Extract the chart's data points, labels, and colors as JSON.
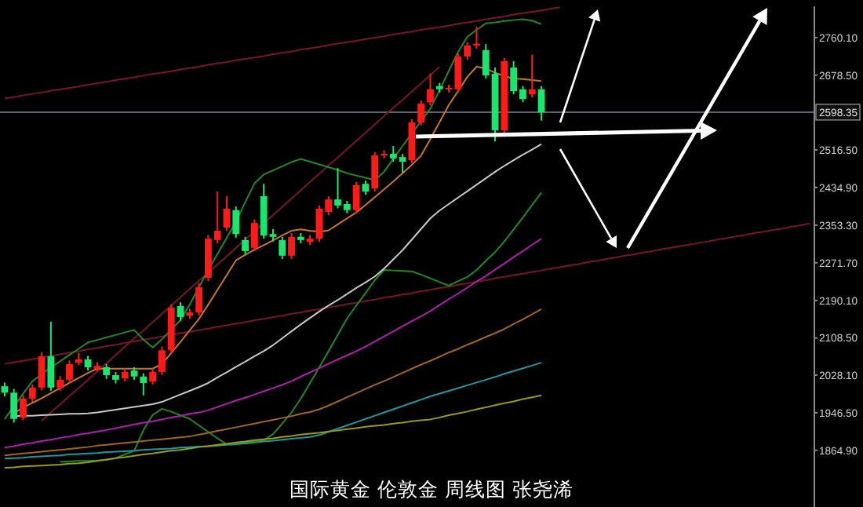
{
  "chart_data": {
    "type": "candlestick",
    "categories": [
      null,
      null,
      null,
      null,
      null,
      null,
      null,
      null,
      null,
      null,
      null,
      null,
      null,
      null,
      null,
      null,
      null,
      null,
      null,
      null,
      null,
      null,
      null,
      null,
      null,
      null,
      null,
      null,
      null,
      null,
      null,
      null,
      null,
      null,
      null,
      null,
      null,
      null,
      null,
      null,
      null,
      null,
      null,
      null,
      null,
      null,
      null,
      null,
      null,
      null,
      null,
      null,
      null,
      null,
      null,
      null,
      null,
      null,
      null,
      null,
      null,
      null,
      null,
      null,
      null,
      null,
      null,
      null,
      null,
      null,
      null,
      null,
      null,
      null,
      null,
      null,
      null,
      null,
      null,
      null,
      null,
      null,
      null,
      null,
      null,
      null,
      null,
      null
    ],
    "ohlc": [
      [
        2004,
        2012,
        1982,
        1990
      ],
      [
        1990,
        1998,
        1925,
        1933
      ],
      [
        1936,
        1985,
        1930,
        1977
      ],
      [
        1977,
        2008,
        1970,
        2001
      ],
      [
        2001,
        2078,
        1995,
        2069
      ],
      [
        2069,
        2144,
        1994,
        2001
      ],
      [
        2001,
        2026,
        1994,
        2018
      ],
      [
        2018,
        2060,
        2012,
        2052
      ],
      [
        2055,
        2076,
        2050,
        2062
      ],
      [
        2062,
        2070,
        2038,
        2045
      ],
      [
        2042,
        2056,
        2036,
        2048
      ],
      [
        2045,
        2052,
        2020,
        2028
      ],
      [
        2028,
        2035,
        2010,
        2018
      ],
      [
        2021,
        2042,
        2014,
        2035
      ],
      [
        2038,
        2045,
        2018,
        2025
      ],
      [
        2025,
        2032,
        1984,
        2011
      ],
      [
        2014,
        2042,
        2008,
        2035
      ],
      [
        2035,
        2090,
        2028,
        2082
      ],
      [
        2082,
        2182,
        2075,
        2174
      ],
      [
        2178,
        2186,
        2146,
        2154
      ],
      [
        2157,
        2172,
        2150,
        2164
      ],
      [
        2164,
        2228,
        2157,
        2219
      ],
      [
        2239,
        2332,
        2232,
        2324
      ],
      [
        2321,
        2426,
        2314,
        2341
      ],
      [
        2348,
        2416,
        2341,
        2389
      ],
      [
        2386,
        2394,
        2326,
        2334
      ],
      [
        2321,
        2328,
        2290,
        2297
      ],
      [
        2304,
        2366,
        2297,
        2358
      ],
      [
        2416,
        2443,
        2324,
        2331
      ],
      [
        2334,
        2345,
        2318,
        2328
      ],
      [
        2321,
        2328,
        2280,
        2287
      ],
      [
        2287,
        2336,
        2280,
        2328
      ],
      [
        2328,
        2336,
        2314,
        2321
      ],
      [
        2317,
        2332,
        2310,
        2324
      ],
      [
        2324,
        2396,
        2317,
        2389
      ],
      [
        2382,
        2416,
        2375,
        2409
      ],
      [
        2409,
        2477,
        2390,
        2396
      ],
      [
        2399,
        2406,
        2379,
        2386
      ],
      [
        2386,
        2447,
        2379,
        2440
      ],
      [
        2443,
        2450,
        2419,
        2426
      ],
      [
        2433,
        2512,
        2426,
        2505
      ],
      [
        2505,
        2516,
        2498,
        2508
      ],
      [
        2508,
        2525,
        2491,
        2498
      ],
      [
        2501,
        2508,
        2467,
        2491
      ],
      [
        2494,
        2583,
        2487,
        2576
      ],
      [
        2576,
        2624,
        2569,
        2617
      ],
      [
        2620,
        2682,
        2613,
        2648
      ],
      [
        2655,
        2662,
        2641,
        2648
      ],
      [
        2648,
        2658,
        2641,
        2651
      ],
      [
        2648,
        2726,
        2641,
        2719
      ],
      [
        2719,
        2750,
        2712,
        2743
      ],
      [
        2743,
        2784,
        2736,
        2747
      ],
      [
        2733,
        2746,
        2671,
        2678
      ],
      [
        2682,
        2695,
        2535,
        2559
      ],
      [
        2559,
        2716,
        2552,
        2709
      ],
      [
        2695,
        2709,
        2637,
        2644
      ],
      [
        2648,
        2655,
        2620,
        2627
      ],
      [
        2637,
        2723,
        2630,
        2648
      ],
      [
        2648,
        2655,
        2580,
        2598
      ],
      null,
      null,
      null,
      null,
      null,
      null,
      null,
      null,
      null,
      null,
      null,
      null,
      null,
      null,
      null,
      null,
      null,
      null,
      null,
      null,
      null,
      null,
      null,
      null,
      null,
      null,
      null,
      null,
      null
    ],
    "colors": [
      "#19e66e",
      "#19e66e",
      "#ff1a1a",
      "#ff1a1a",
      "#ff1a1a",
      "#19e66e",
      "#ff1a1a",
      "#ff1a1a",
      "#ff1a1a",
      "#19e66e",
      "#ff1a1a",
      "#19e66e",
      "#19e66e",
      "#ff1a1a",
      "#19e66e",
      "#19e66e",
      "#ff1a1a",
      "#ff1a1a",
      "#ff1a1a",
      "#19e66e",
      "#ff1a1a",
      "#ff1a1a",
      "#ff1a1a",
      "#ff1a1a",
      "#ff1a1a",
      "#19e66e",
      "#19e66e",
      "#ff1a1a",
      "#19e66e",
      "#19e66e",
      "#19e66e",
      "#ff1a1a",
      "#19e66e",
      "#ff1a1a",
      "#ff1a1a",
      "#ff1a1a",
      "#19e66e",
      "#19e66e",
      "#ff1a1a",
      "#19e66e",
      "#ff1a1a",
      "#ff1a1a",
      "#19e66e",
      "#19e66e",
      "#ff1a1a",
      "#ff1a1a",
      "#ff1a1a",
      "#19e66e",
      "#ff1a1a",
      "#ff1a1a",
      "#ff1a1a",
      "#ff1a1a",
      "#19e66e",
      "#19e66e",
      "#ff1a1a",
      "#19e66e",
      "#19e66e",
      "#ff1a1a",
      "#19e66e",
      null,
      null,
      null,
      null,
      null,
      null,
      null,
      null,
      null,
      null,
      null,
      null,
      null,
      null,
      null,
      null,
      null,
      null,
      null,
      null,
      null,
      null,
      null,
      null,
      null,
      null,
      null,
      null,
      null
    ],
    "series": [
      {
        "type": "line",
        "color": "#7a1428",
        "values": [
          2628,
          2631,
          2635,
          2638,
          2641,
          2645,
          2648,
          2651,
          2654,
          2658,
          2661,
          2664,
          2668,
          2671,
          2674,
          2678,
          2681,
          2684,
          2687,
          2691,
          2694,
          2697,
          2701,
          2704,
          2707,
          2711,
          2714,
          2717,
          2720,
          2724,
          2727,
          2730,
          2734,
          2737,
          2740,
          2744,
          2747,
          2750,
          2753,
          2757,
          2760,
          2763,
          2767,
          2770,
          2773,
          2777,
          2780,
          2783,
          2786,
          2790,
          2793,
          2796,
          2800,
          2803,
          2806,
          2810,
          2813,
          2816,
          2819,
          2823,
          2826,
          null,
          null,
          null,
          null,
          null,
          null,
          null,
          null,
          null,
          null,
          null,
          null,
          null,
          null,
          null,
          null,
          null,
          null,
          null,
          null,
          null,
          null,
          null,
          null,
          null,
          null,
          null
        ]
      },
      {
        "type": "line",
        "color": "#7a1428",
        "values": [
          null,
          null,
          null,
          null,
          1929,
          1947,
          1965,
          1983,
          2000,
          2018,
          2036,
          2054,
          2072,
          2090,
          2108,
          2125,
          2143,
          2161,
          2179,
          2197,
          2215,
          2233,
          2250,
          2268,
          2286,
          2304,
          2322,
          2340,
          2358,
          2375,
          2393,
          2411,
          2429,
          2447,
          2465,
          2483,
          2500,
          2518,
          2536,
          2554,
          2572,
          2590,
          2608,
          2625,
          2643,
          2661,
          2679,
          2697,
          null,
          null,
          null,
          null,
          null,
          null,
          null,
          null,
          null,
          null,
          null,
          null,
          null,
          null,
          null,
          null,
          null,
          null,
          null,
          null,
          null,
          null,
          null,
          null,
          null,
          null,
          null,
          null,
          null,
          null,
          null,
          null,
          null,
          null,
          null,
          null,
          null,
          null,
          null,
          null
        ]
      },
      {
        "type": "line",
        "color": "#7a1428",
        "values": [
          2052,
          2056,
          2059,
          2063,
          2066,
          2070,
          2073,
          2077,
          2080,
          2084,
          2087,
          2091,
          2094,
          2098,
          2101,
          2105,
          2108,
          2112,
          2115,
          2119,
          2122,
          2126,
          2129,
          2133,
          2136,
          2140,
          2143,
          2147,
          2150,
          2154,
          2157,
          2161,
          2164,
          2168,
          2171,
          2175,
          2178,
          2182,
          2185,
          2189,
          2192,
          2196,
          2199,
          2203,
          2206,
          2210,
          2213,
          2217,
          2220,
          2224,
          2227,
          2231,
          2234,
          2238,
          2241,
          2245,
          2248,
          2252,
          2255,
          2259,
          2262,
          2266,
          2269,
          2273,
          2276,
          2280,
          2283,
          2287,
          2290,
          2294,
          2297,
          2301,
          2304,
          2308,
          2311,
          2315,
          2318,
          2322,
          2325,
          2329,
          2332,
          2336,
          2339,
          2343,
          2346,
          2350,
          2353,
          2357
        ]
      },
      {
        "type": "line",
        "color": "#1f8a1f",
        "values": [
          1933,
          1960,
          1988,
          2015,
          2030,
          2045,
          2058,
          2072,
          2085,
          2099,
          2104,
          2110,
          2115,
          2121,
          2126,
          2105,
          2088,
          2106,
          2127,
          2147,
          2181,
          2219,
          2256,
          2291,
          2326,
          2361,
          2403,
          2444,
          2463,
          2472,
          2481,
          2490,
          2497,
          2491,
          2485,
          2479,
          2473,
          2466,
          2461,
          2456,
          2451,
          2469,
          2497,
          2525,
          2552,
          2579,
          2606,
          2646,
          2688,
          2729,
          2762,
          2777,
          2791,
          2793,
          2796,
          2798,
          2800,
          2797,
          2789,
          null,
          null,
          null,
          null,
          null,
          null,
          null,
          null,
          null,
          null,
          null,
          null,
          null,
          null,
          null,
          null,
          null,
          null,
          null,
          null,
          null,
          null,
          null,
          null,
          null,
          null,
          null,
          null,
          null
        ]
      },
      {
        "type": "line",
        "color": "#1f8a1f",
        "values": [
          null,
          null,
          null,
          null,
          null,
          null,
          1840,
          1841,
          1842,
          1842,
          1843,
          1844,
          1848,
          1856,
          1864,
          1909,
          1942,
          1955,
          1949,
          1941,
          1933,
          1919,
          1905,
          1891,
          1878,
          1880,
          1882,
          1884,
          1887,
          1900,
          1923,
          1947,
          1977,
          2011,
          2045,
          2080,
          2115,
          2151,
          2179,
          2206,
          2234,
          2256,
          2255,
          2254,
          2253,
          2246,
          2238,
          2230,
          2222,
          2232,
          2241,
          2256,
          2276,
          2295,
          2318,
          2344,
          2370,
          2397,
          2424,
          null,
          null,
          null,
          null,
          null,
          null,
          null,
          null,
          null,
          null,
          null,
          null,
          null,
          null,
          null,
          null,
          null,
          null,
          null,
          null,
          null,
          null,
          null,
          null,
          null,
          null,
          null,
          null,
          null
        ]
      },
      {
        "type": "line",
        "color": "#c8c8c8",
        "values": [
          null,
          1939,
          1940,
          1940,
          1941,
          1942,
          1943,
          1944,
          1944,
          1945,
          1947,
          1950,
          1953,
          1956,
          1959,
          1962,
          1965,
          1970,
          1978,
          1986,
          1994,
          2002,
          2011,
          2023,
          2034,
          2046,
          2057,
          2069,
          2080,
          2093,
          2108,
          2123,
          2138,
          2152,
          2166,
          2179,
          2191,
          2204,
          2217,
          2229,
          2242,
          2259,
          2279,
          2299,
          2322,
          2345,
          2368,
          2385,
          2399,
          2413,
          2427,
          2441,
          2455,
          2469,
          2482,
          2494,
          2506,
          2517,
          2529,
          null,
          null,
          null,
          null,
          null,
          null,
          null,
          null,
          null,
          null,
          null,
          null,
          null,
          null,
          null,
          null,
          null,
          null,
          null,
          null,
          null,
          null,
          null,
          null,
          null,
          null,
          null,
          null,
          null
        ]
      },
      {
        "type": "line",
        "color": "#b01cb0",
        "values": [
          1871,
          1874,
          1878,
          1881,
          1885,
          1888,
          1892,
          1895,
          1899,
          1902,
          1906,
          1909,
          1913,
          1917,
          1921,
          1925,
          1928,
          1932,
          1936,
          1940,
          1944,
          1947,
          1952,
          1959,
          1966,
          1973,
          1979,
          1986,
          1993,
          2000,
          2007,
          2015,
          2025,
          2034,
          2043,
          2053,
          2062,
          2071,
          2080,
          2090,
          2101,
          2112,
          2123,
          2134,
          2145,
          2156,
          2167,
          2180,
          2193,
          2205,
          2218,
          2231,
          2243,
          2257,
          2270,
          2284,
          2297,
          2311,
          2324,
          null,
          null,
          null,
          null,
          null,
          null,
          null,
          null,
          null,
          null,
          null,
          null,
          null,
          null,
          null,
          null,
          null,
          null,
          null,
          null,
          null,
          null,
          null,
          null,
          null,
          null,
          null,
          null,
          null
        ]
      },
      {
        "type": "line",
        "color": "#a0641e",
        "values": [
          1854,
          1856,
          1858,
          1860,
          1862,
          1864,
          1866,
          1868,
          1870,
          1872,
          1875,
          1877,
          1879,
          1881,
          1883,
          1885,
          1887,
          1889,
          1891,
          1893,
          1895,
          1899,
          1903,
          1907,
          1911,
          1915,
          1919,
          1923,
          1927,
          1931,
          1935,
          1939,
          1944,
          1948,
          1954,
          1962,
          1971,
          1980,
          1989,
          1998,
          2007,
          2015,
          2024,
          2033,
          2042,
          2051,
          2059,
          2068,
          2077,
          2085,
          2094,
          2102,
          2111,
          2119,
          2128,
          2139,
          2149,
          2160,
          2171,
          null,
          null,
          null,
          null,
          null,
          null,
          null,
          null,
          null,
          null,
          null,
          null,
          null,
          null,
          null,
          null,
          null,
          null,
          null,
          null,
          null,
          null,
          null,
          null,
          null,
          null,
          null,
          null,
          null
        ]
      },
      {
        "type": "line",
        "color": "#1a9aa0",
        "values": [
          1847,
          1848,
          1849,
          1851,
          1852,
          1853,
          1854,
          1856,
          1857,
          1858,
          1859,
          1861,
          1862,
          1863,
          1864,
          1866,
          1867,
          1868,
          1869,
          1871,
          1872,
          1873,
          1874,
          1875,
          1877,
          1878,
          1880,
          1882,
          1884,
          1886,
          1888,
          1890,
          1892,
          1894,
          1898,
          1905,
          1912,
          1919,
          1926,
          1933,
          1940,
          1947,
          1954,
          1961,
          1968,
          1975,
          1982,
          1988,
          1994,
          2000,
          2006,
          2012,
          2018,
          2024,
          2031,
          2037,
          2043,
          2049,
          2055,
          null,
          null,
          null,
          null,
          null,
          null,
          null,
          null,
          null,
          null,
          null,
          null,
          null,
          null,
          null,
          null,
          null,
          null,
          null,
          null,
          null,
          null,
          null,
          null,
          null,
          null,
          null,
          null,
          null
        ]
      },
      {
        "type": "line",
        "color": "#9a9a10",
        "values": [
          1827,
          1828,
          1830,
          1831,
          1832,
          1833,
          1834,
          1836,
          1837,
          1839,
          1842,
          1845,
          1848,
          1850,
          1853,
          1856,
          1858,
          1861,
          1864,
          1866,
          1869,
          1872,
          1874,
          1877,
          1879,
          1882,
          1884,
          1887,
          1889,
          1891,
          1894,
          1896,
          1899,
          1901,
          1903,
          1906,
          1908,
          1911,
          1913,
          1916,
          1918,
          1920,
          1923,
          1925,
          1928,
          1930,
          1932,
          1936,
          1941,
          1945,
          1949,
          1954,
          1958,
          1963,
          1967,
          1971,
          1976,
          1980,
          1984,
          null,
          null,
          null,
          null,
          null,
          null,
          null,
          null,
          null,
          null,
          null,
          null,
          null,
          null,
          null,
          null,
          null,
          null,
          null,
          null,
          null,
          null,
          null,
          null,
          null,
          null,
          null,
          null,
          null
        ]
      },
      {
        "type": "line",
        "color": "#c8781e",
        "values": [
          null,
          1946,
          1957,
          1968,
          1978,
          1989,
          2000,
          2011,
          2022,
          2033,
          2042,
          2042,
          2042,
          2042,
          2042,
          2042,
          2042,
          2052,
          2076,
          2100,
          2125,
          2150,
          2181,
          2213,
          2245,
          2277,
          2289,
          2300,
          2310,
          2320,
          2331,
          2341,
          2344,
          2341,
          2339,
          2342,
          2355,
          2368,
          2381,
          2397,
          2414,
          2431,
          2448,
          2466,
          2484,
          2504,
          2540,
          2577,
          2614,
          2644,
          2675,
          2697,
          2693,
          2684,
          2677,
          2671,
          2670,
          2668,
          2666,
          null,
          null,
          null,
          null,
          null,
          null,
          null,
          null,
          null,
          null,
          null,
          null,
          null,
          null,
          null,
          null,
          null,
          null,
          null,
          null,
          null,
          null,
          null,
          null,
          null,
          null,
          null,
          null,
          null
        ]
      }
    ],
    "ylim": [
      1742,
      2828
    ],
    "yticks": [
      {
        "value": 2760.1,
        "label": "2760.10"
      },
      {
        "value": 2678.5,
        "label": "2678.50"
      },
      {
        "value": 2516.5,
        "label": "2516.50"
      },
      {
        "value": 2434.9,
        "label": "2434.90"
      },
      {
        "value": 2353.3,
        "label": "2353.30"
      },
      {
        "value": 2271.7,
        "label": "2271.70"
      },
      {
        "value": 2190.1,
        "label": "2190.10"
      },
      {
        "value": 2108.5,
        "label": "2108.50"
      },
      {
        "value": 2028.1,
        "label": "2028.10"
      },
      {
        "value": 1946.5,
        "label": "1946.50"
      },
      {
        "value": 1864.9,
        "label": "1864.90"
      }
    ],
    "tick_labels": "y",
    "ref_lines": [
      {
        "axis": "y",
        "value": 2598.35,
        "label": "2598.35",
        "color": "#5a6478"
      }
    ],
    "annotations": [
      "国际黄金 伦敦金 周线图 张尧浠"
    ]
  }
}
